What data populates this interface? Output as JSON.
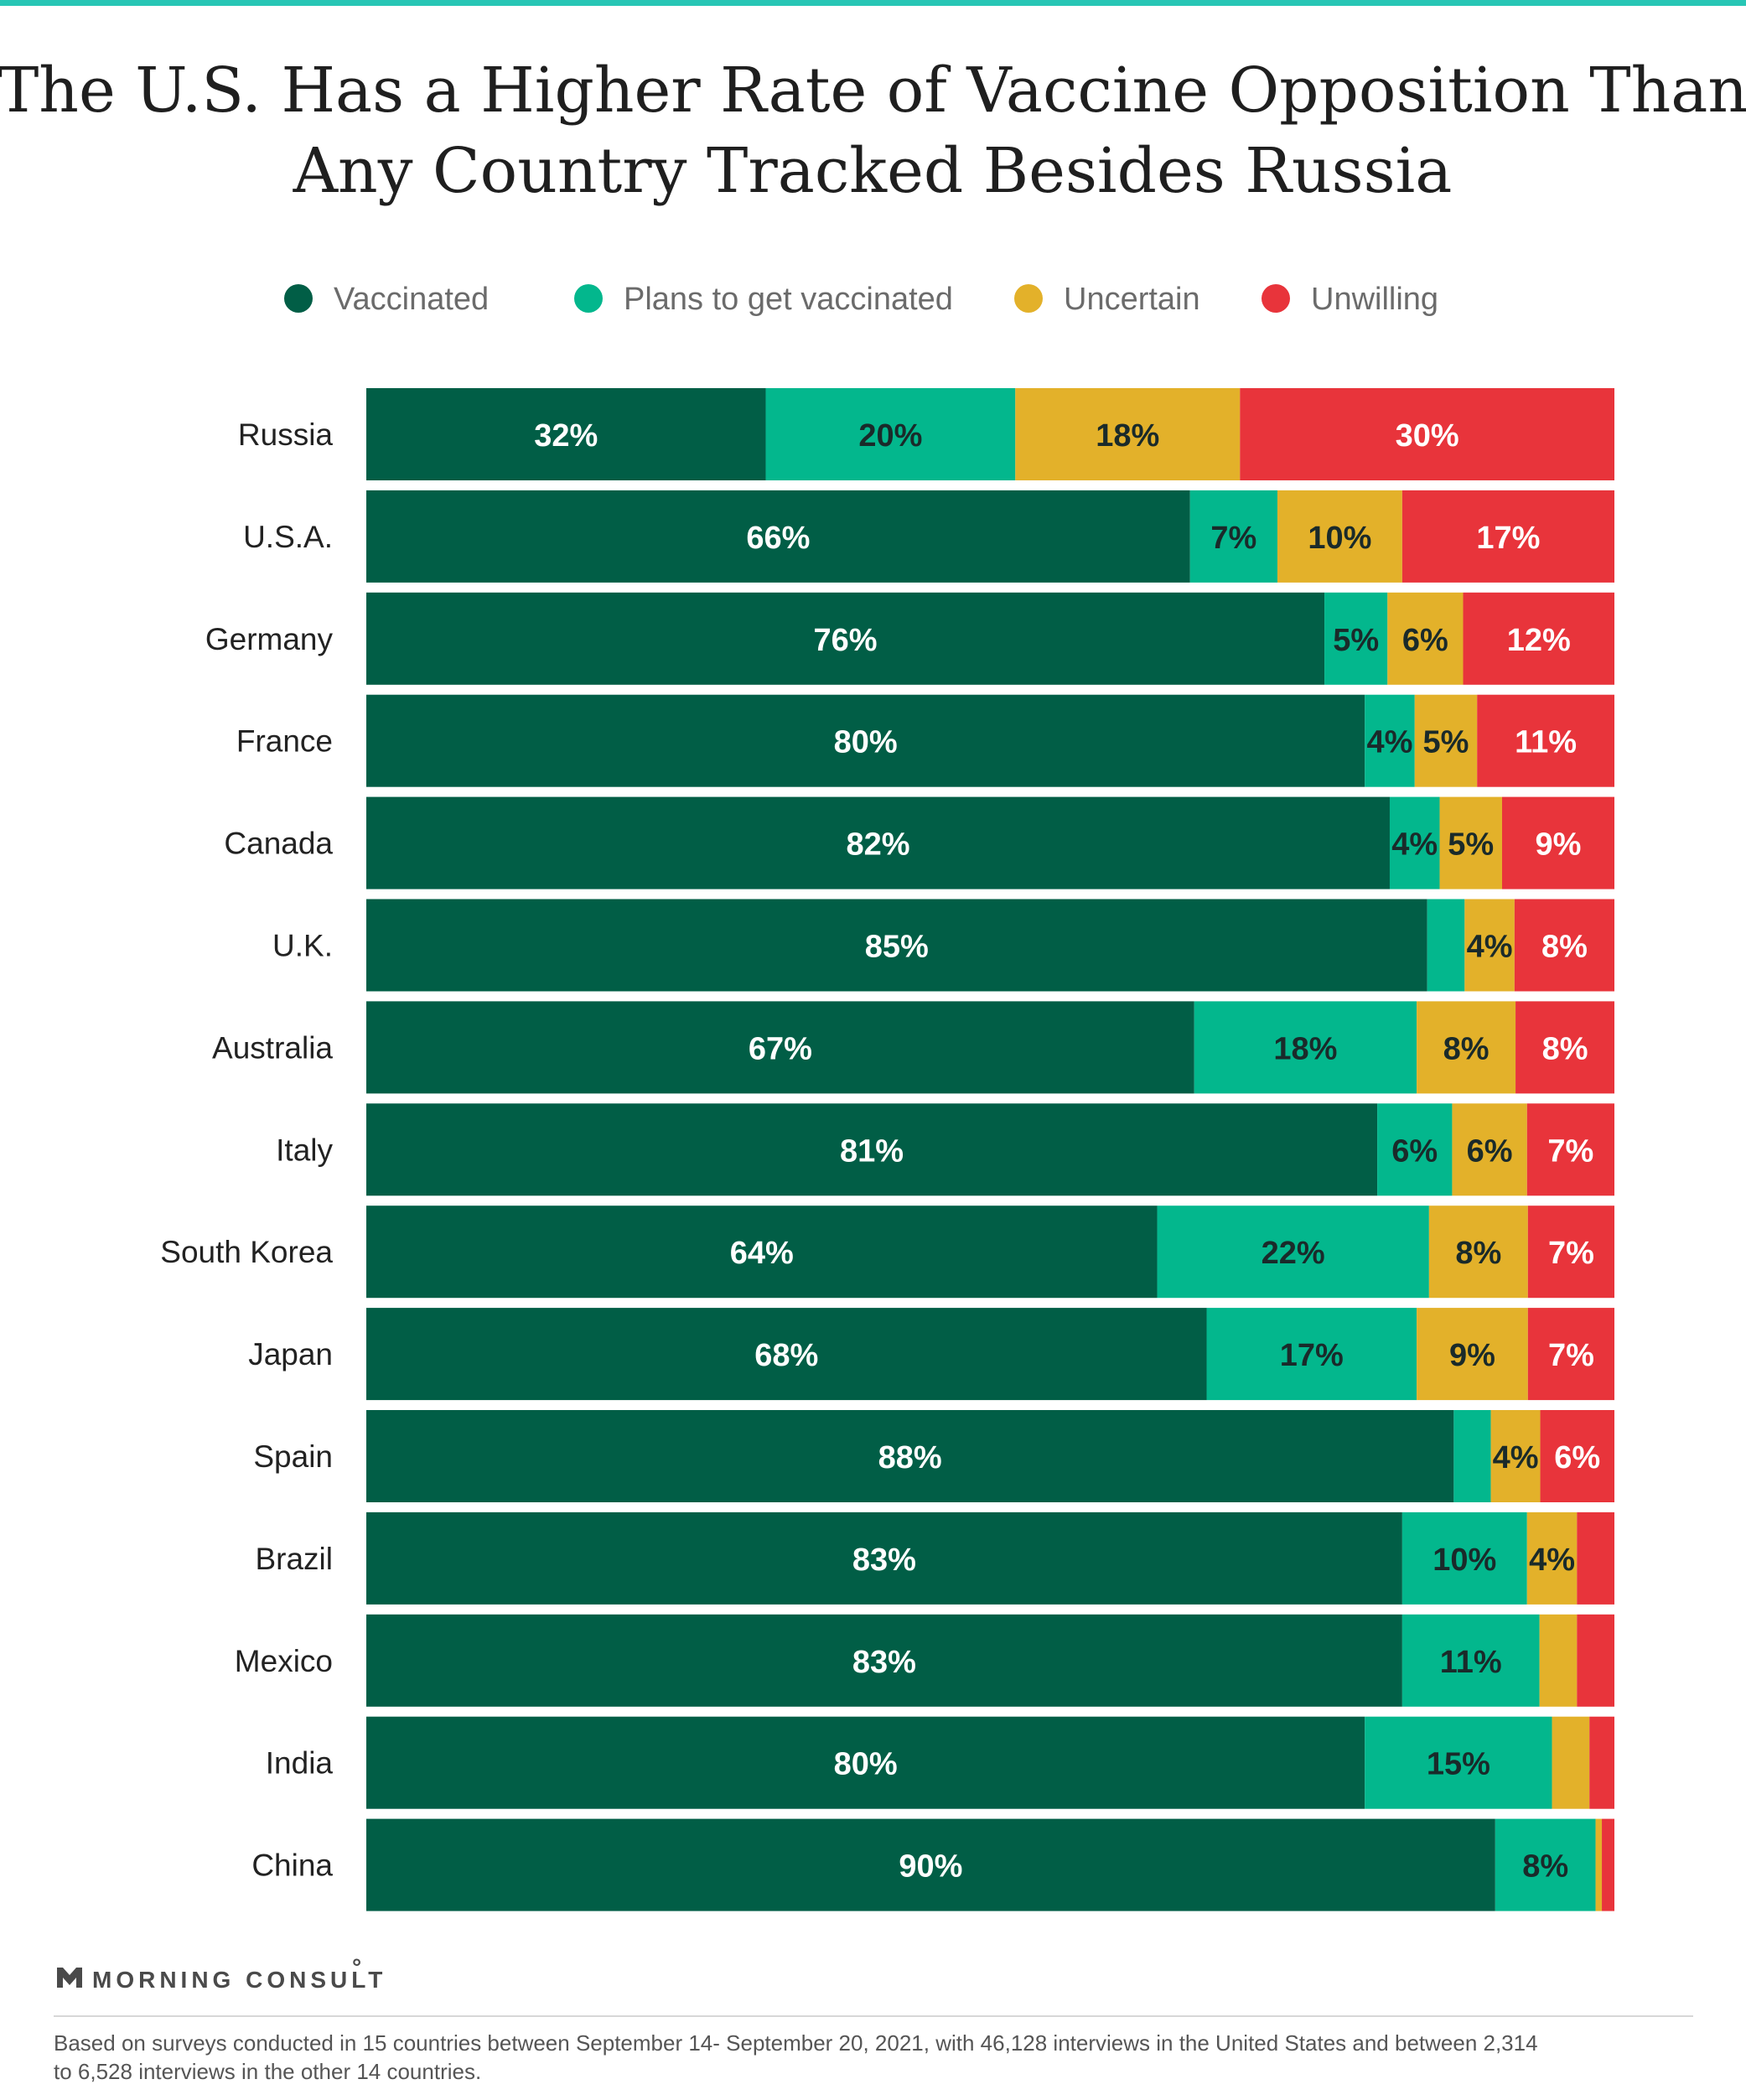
{
  "colors": {
    "top_rule": "#27c6b5",
    "vaccinated": "#015e46",
    "plans": "#03b78d",
    "uncertain": "#e3b12a",
    "unwilling": "#e8343b",
    "label_dark": "#1a2a2a",
    "label_light": "#ffffff",
    "footer_rule": "#d7d7d7",
    "brand": "#4a4a4a"
  },
  "brand": "MORNING CONSULT",
  "brand_icon": "m-logo-icon",
  "footnote": [
    "Based on surveys conducted in 15 countries between September 14- September 20, 2021, with 46,128 interviews in the United States and between 2,314",
    "to 6,528 interviews in the other 14 countries."
  ],
  "chart_data": {
    "type": "bar",
    "orientation": "horizontal",
    "stacked": true,
    "normalized": true,
    "title": [
      "The U.S. Has a Higher Rate of Vaccine Opposition Than",
      "Any Country Tracked Besides Russia"
    ],
    "legend": {
      "placement": "top",
      "entries": [
        "Vaccinated",
        "Plans to get vaccinated",
        "Uncertain",
        "Unwilling"
      ]
    },
    "xlim": [
      0,
      100
    ],
    "grid": false,
    "categories": [
      "Russia",
      "U.S.A.",
      "Germany",
      "France",
      "Canada",
      "U.K.",
      "Australia",
      "Italy",
      "South Korea",
      "Japan",
      "Spain",
      "Brazil",
      "Mexico",
      "India",
      "China"
    ],
    "series": [
      {
        "name": "Vaccinated",
        "color_key": "vaccinated",
        "label_color": "label_light",
        "values": [
          32,
          66,
          76,
          80,
          82,
          85,
          67,
          81,
          64,
          68,
          88,
          83,
          83,
          80,
          90
        ],
        "labels": [
          "32%",
          "66%",
          "76%",
          "80%",
          "82%",
          "85%",
          "67%",
          "81%",
          "64%",
          "68%",
          "88%",
          "83%",
          "83%",
          "80%",
          "90%"
        ]
      },
      {
        "name": "Plans to get vaccinated",
        "color_key": "plans",
        "label_color": "label_dark",
        "values": [
          20,
          7,
          5,
          4,
          4,
          3,
          18,
          6,
          22,
          17,
          3,
          10,
          11,
          15,
          8
        ],
        "labels": [
          "20%",
          "7%",
          "5%",
          "4%",
          "4%",
          "",
          "18%",
          "6%",
          "22%",
          "17%",
          "",
          "10%",
          "11%",
          "15%",
          "8%"
        ]
      },
      {
        "name": "Uncertain",
        "color_key": "uncertain",
        "label_color": "label_dark",
        "values": [
          18,
          10,
          6,
          5,
          5,
          4,
          8,
          6,
          8,
          9,
          4,
          4,
          3,
          3,
          0.5
        ],
        "labels": [
          "18%",
          "10%",
          "6%",
          "5%",
          "5%",
          "4%",
          "8%",
          "6%",
          "8%",
          "9%",
          "4%",
          "4%",
          "",
          "",
          ""
        ]
      },
      {
        "name": "Unwilling",
        "color_key": "unwilling",
        "label_color": "label_light",
        "values": [
          30,
          17,
          12,
          11,
          9,
          8,
          8,
          7,
          7,
          7,
          6,
          3,
          3,
          2,
          1
        ],
        "labels": [
          "30%",
          "17%",
          "12%",
          "11%",
          "9%",
          "8%",
          "8%",
          "7%",
          "7%",
          "7%",
          "6%",
          "",
          "",
          "",
          ""
        ]
      }
    ]
  }
}
